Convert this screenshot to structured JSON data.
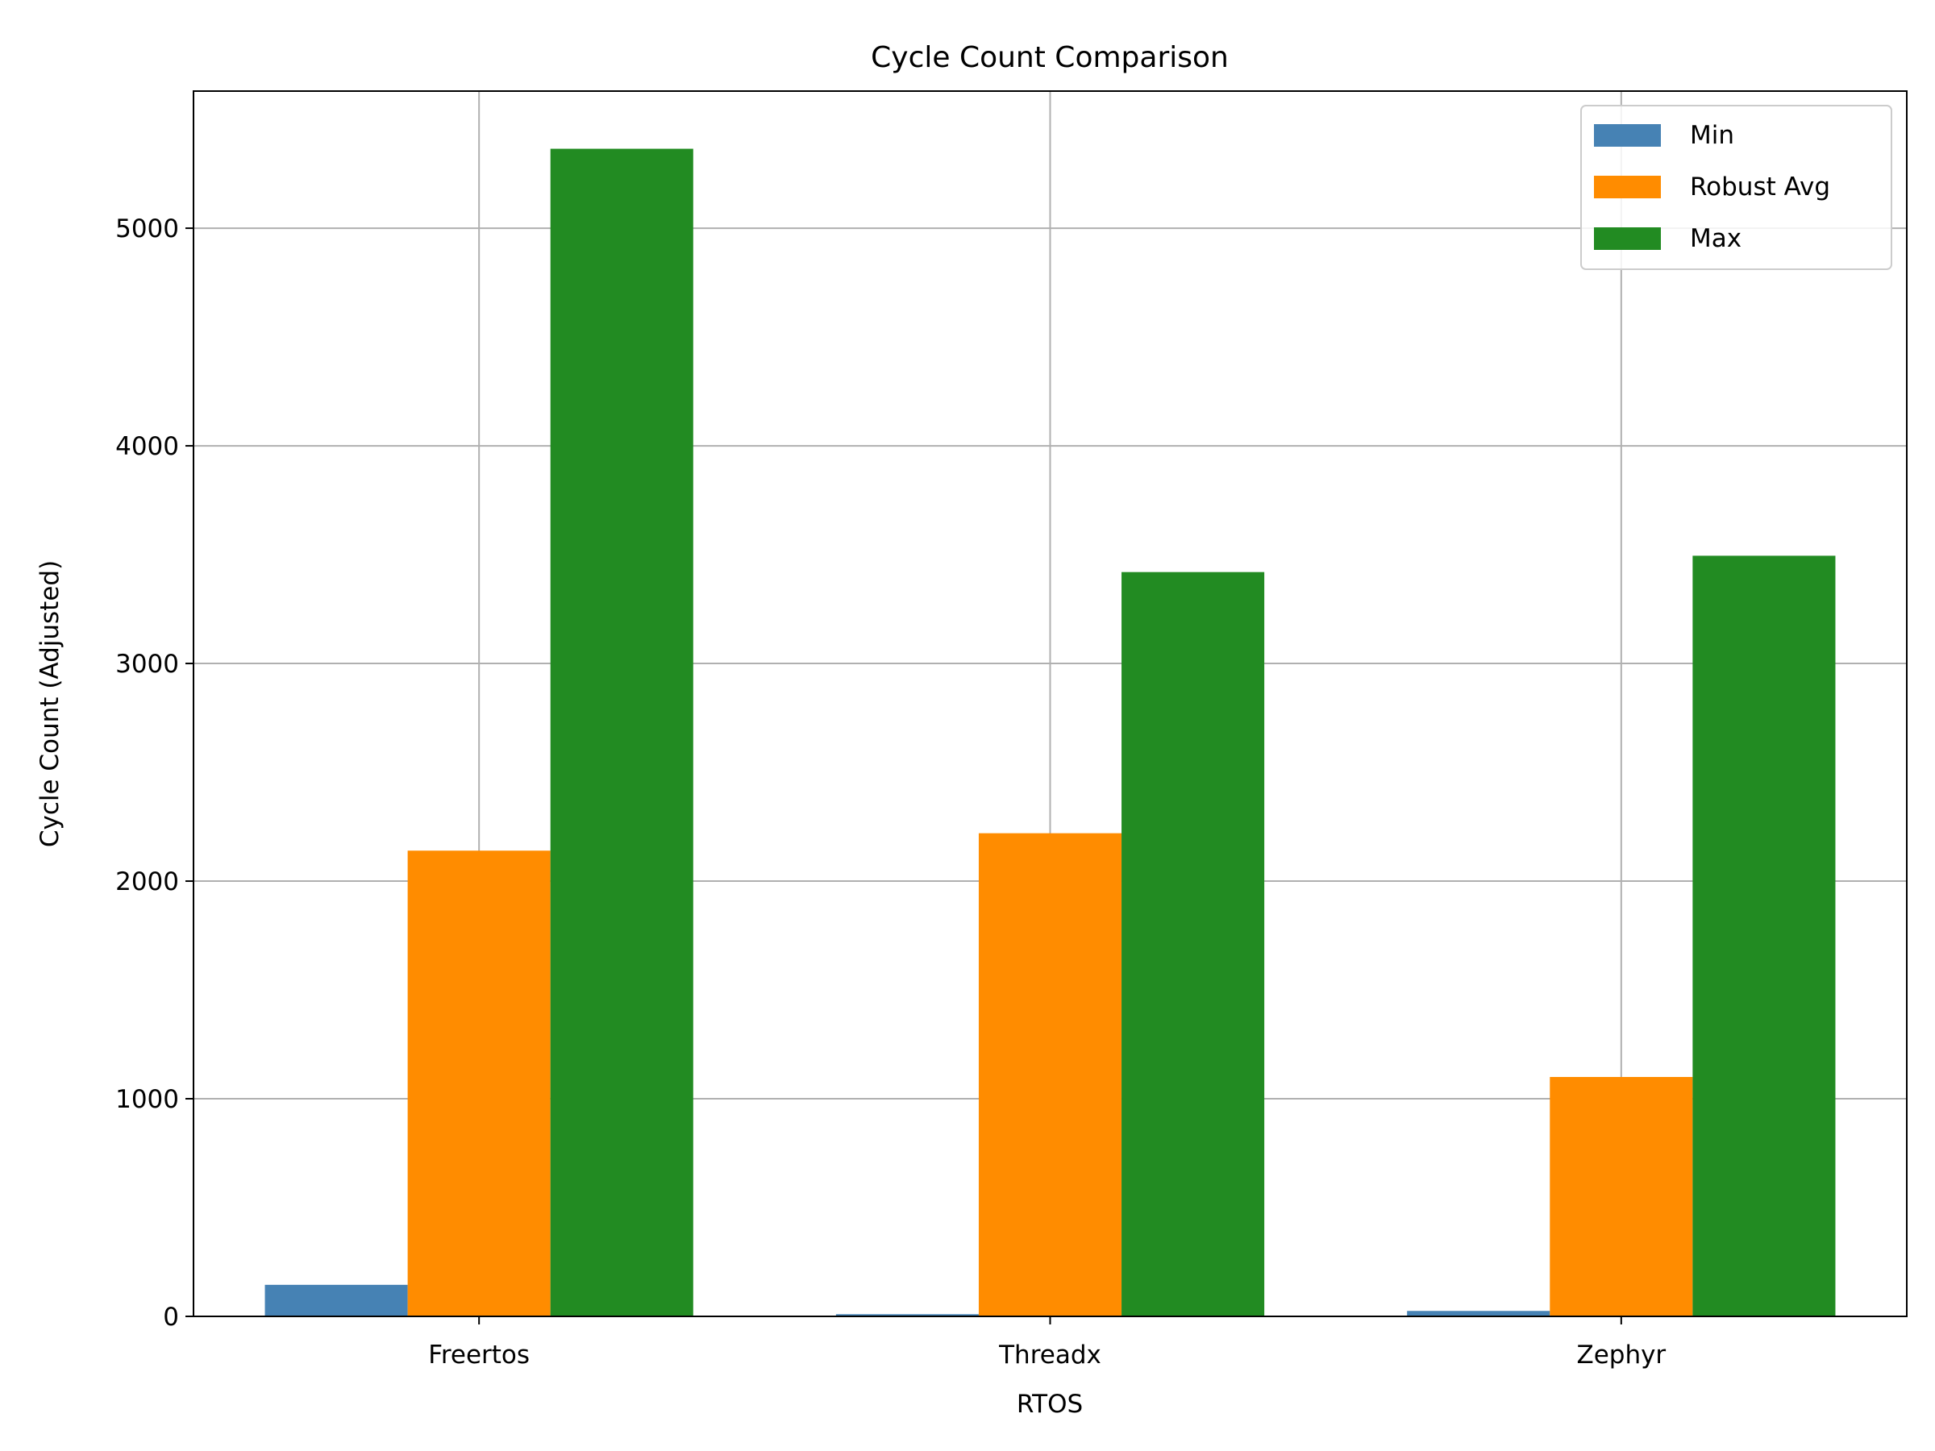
{
  "chart_data": {
    "type": "bar",
    "title": "Cycle Count Comparison",
    "xlabel": "RTOS",
    "ylabel": "Cycle Count (Adjusted)",
    "categories": [
      "Freertos",
      "Threadx",
      "Zephyr"
    ],
    "series": [
      {
        "name": "Min",
        "color": "#4682b4",
        "values": [
          145,
          10,
          25
        ]
      },
      {
        "name": "Robust Avg",
        "color": "#ff8c00",
        "values": [
          2140,
          2220,
          1100
        ]
      },
      {
        "name": "Max",
        "color": "#228b22",
        "values": [
          5365,
          3420,
          3495
        ]
      }
    ],
    "ylim": [
      0,
      5630
    ],
    "yticks": [
      0,
      1000,
      2000,
      3000,
      4000,
      5000
    ],
    "grid": true,
    "legend": "top-right"
  }
}
